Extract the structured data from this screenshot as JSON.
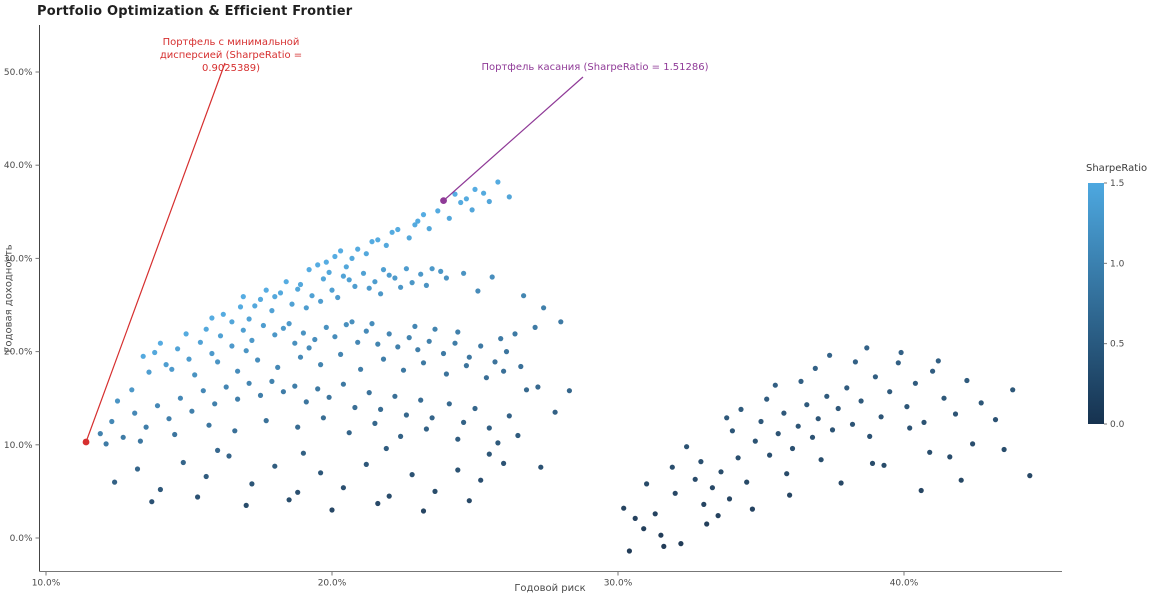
{
  "title": "Portfolio Optimization & Efficient Frontier",
  "chart_data": {
    "type": "scatter",
    "title": "Portfolio Optimization & Efficient Frontier",
    "xlabel": "Годовой риск",
    "ylabel": "Годовая доходность",
    "x_tick_labels": [
      "10.0%",
      "20.0%",
      "30.0%",
      "40.0%"
    ],
    "x_tick_values": [
      10,
      20,
      30,
      40
    ],
    "y_tick_labels": [
      "0.0%",
      "10.0%",
      "20.0%",
      "30.0%",
      "40.0%",
      "50.0%"
    ],
    "y_tick_values": [
      0,
      10,
      20,
      30,
      40,
      50
    ],
    "xlim": [
      9.8,
      45.7
    ],
    "ylim": [
      -3.6,
      55.0
    ],
    "grid": false,
    "units": "percent",
    "color_rule": "point color = SharpeRatio = return / risk, mapped on colorbar scale",
    "colorbar": {
      "title": "SharpeRatio",
      "tick_labels": [
        "1.5",
        "1.0",
        "0.5",
        "0.0"
      ],
      "tick_values": [
        1.5,
        1.0,
        0.5,
        0.0
      ],
      "min": 0.0,
      "max": 1.5,
      "color_min": "#16324F",
      "color_max": "#4DA8E0"
    },
    "marked_points": {
      "min_variance": {
        "risk": 11.4,
        "return": 10.3,
        "sharpe_label": "0.9025389",
        "color": "#d62f2f",
        "annotation": "Портфель с минимальной дисперсией (SharpeRatio = 0.9025389)"
      },
      "tangency": {
        "risk": 23.9,
        "return": 36.2,
        "sharpe_label": "1.51286",
        "color": "#8f3a97",
        "annotation": "Портфель касания (SharpeRatio = 1.51286)"
      }
    },
    "points": [
      [
        19.2,
        28.8
      ],
      [
        19.8,
        29.6
      ],
      [
        20.1,
        30.2
      ],
      [
        20.5,
        29.1
      ],
      [
        20.9,
        31.0
      ],
      [
        21.2,
        30.5
      ],
      [
        21.6,
        32.0
      ],
      [
        21.9,
        31.4
      ],
      [
        22.3,
        33.1
      ],
      [
        22.7,
        32.2
      ],
      [
        23.0,
        34.0
      ],
      [
        23.4,
        33.2
      ],
      [
        23.7,
        35.1
      ],
      [
        24.1,
        34.3
      ],
      [
        24.5,
        36.0
      ],
      [
        24.9,
        35.2
      ],
      [
        25.3,
        37.0
      ],
      [
        25.8,
        38.2
      ],
      [
        26.2,
        36.6
      ],
      [
        24.3,
        36.9
      ],
      [
        22.1,
        32.8
      ],
      [
        20.3,
        30.8
      ],
      [
        19.5,
        29.3
      ],
      [
        23.2,
        34.7
      ],
      [
        25.0,
        37.4
      ],
      [
        21.4,
        31.8
      ],
      [
        22.9,
        33.6
      ],
      [
        24.7,
        36.4
      ],
      [
        20.7,
        30.0
      ],
      [
        25.5,
        36.1
      ],
      [
        16.2,
        24.0
      ],
      [
        16.8,
        24.8
      ],
      [
        17.1,
        23.5
      ],
      [
        17.5,
        25.6
      ],
      [
        17.9,
        24.4
      ],
      [
        18.2,
        26.3
      ],
      [
        18.6,
        25.1
      ],
      [
        18.9,
        27.2
      ],
      [
        19.3,
        26.0
      ],
      [
        19.7,
        27.8
      ],
      [
        20.0,
        26.6
      ],
      [
        20.4,
        28.1
      ],
      [
        20.8,
        27.0
      ],
      [
        21.1,
        28.4
      ],
      [
        21.5,
        27.5
      ],
      [
        21.8,
        28.8
      ],
      [
        22.2,
        27.9
      ],
      [
        22.6,
        28.9
      ],
      [
        23.1,
        28.3
      ],
      [
        23.5,
        28.9
      ],
      [
        16.5,
        23.2
      ],
      [
        17.3,
        24.9
      ],
      [
        18.0,
        25.9
      ],
      [
        18.8,
        26.7
      ],
      [
        19.6,
        25.4
      ],
      [
        20.6,
        27.7
      ],
      [
        21.3,
        26.8
      ],
      [
        22.0,
        28.2
      ],
      [
        22.8,
        27.4
      ],
      [
        23.8,
        28.6
      ],
      [
        15.8,
        23.6
      ],
      [
        16.9,
        25.9
      ],
      [
        17.7,
        26.6
      ],
      [
        18.4,
        27.5
      ],
      [
        19.1,
        24.7
      ],
      [
        19.9,
        28.5
      ],
      [
        20.2,
        25.8
      ],
      [
        21.7,
        26.2
      ],
      [
        22.4,
        26.9
      ],
      [
        23.3,
        27.1
      ],
      [
        24.0,
        27.9
      ],
      [
        24.6,
        28.4
      ],
      [
        25.1,
        26.5
      ],
      [
        25.6,
        28.0
      ],
      [
        26.7,
        26.0
      ],
      [
        27.4,
        24.7
      ],
      [
        28.0,
        23.2
      ],
      [
        13.4,
        19.5
      ],
      [
        13.8,
        19.9
      ],
      [
        14.2,
        18.6
      ],
      [
        14.6,
        20.3
      ],
      [
        15.0,
        19.2
      ],
      [
        15.4,
        21.0
      ],
      [
        15.8,
        19.8
      ],
      [
        16.1,
        21.7
      ],
      [
        16.5,
        20.6
      ],
      [
        16.9,
        22.3
      ],
      [
        17.2,
        21.2
      ],
      [
        17.6,
        22.8
      ],
      [
        18.0,
        21.8
      ],
      [
        18.3,
        22.5
      ],
      [
        18.7,
        20.9
      ],
      [
        19.0,
        22.0
      ],
      [
        19.4,
        21.3
      ],
      [
        19.8,
        22.6
      ],
      [
        20.1,
        21.6
      ],
      [
        20.5,
        22.9
      ],
      [
        20.9,
        21.0
      ],
      [
        21.2,
        22.2
      ],
      [
        21.6,
        20.8
      ],
      [
        22.0,
        21.9
      ],
      [
        22.3,
        20.5
      ],
      [
        22.7,
        21.5
      ],
      [
        23.0,
        20.2
      ],
      [
        23.4,
        21.1
      ],
      [
        23.9,
        19.8
      ],
      [
        24.3,
        20.9
      ],
      [
        24.8,
        19.4
      ],
      [
        25.2,
        20.6
      ],
      [
        25.7,
        18.9
      ],
      [
        26.1,
        20.0
      ],
      [
        26.6,
        18.4
      ],
      [
        13.6,
        17.8
      ],
      [
        14.4,
        18.1
      ],
      [
        15.2,
        17.5
      ],
      [
        16.0,
        18.9
      ],
      [
        16.7,
        17.9
      ],
      [
        17.4,
        19.1
      ],
      [
        18.1,
        18.3
      ],
      [
        18.9,
        19.4
      ],
      [
        19.6,
        18.6
      ],
      [
        20.3,
        19.7
      ],
      [
        21.0,
        18.1
      ],
      [
        21.8,
        19.2
      ],
      [
        22.5,
        18.0
      ],
      [
        23.2,
        18.8
      ],
      [
        24.0,
        17.6
      ],
      [
        24.7,
        18.5
      ],
      [
        25.4,
        17.2
      ],
      [
        26.0,
        17.9
      ],
      [
        14.0,
        20.9
      ],
      [
        15.6,
        22.4
      ],
      [
        17.0,
        20.1
      ],
      [
        18.5,
        23.0
      ],
      [
        19.2,
        20.4
      ],
      [
        20.7,
        23.2
      ],
      [
        21.4,
        23.0
      ],
      [
        22.9,
        22.7
      ],
      [
        23.6,
        22.4
      ],
      [
        24.4,
        22.1
      ],
      [
        25.9,
        21.4
      ],
      [
        26.4,
        21.9
      ],
      [
        27.1,
        22.6
      ],
      [
        14.9,
        21.9
      ],
      [
        11.9,
        11.2
      ],
      [
        12.3,
        12.5
      ],
      [
        12.7,
        10.8
      ],
      [
        13.1,
        13.4
      ],
      [
        13.5,
        11.9
      ],
      [
        13.9,
        14.2
      ],
      [
        14.3,
        12.8
      ],
      [
        14.7,
        15.0
      ],
      [
        15.1,
        13.6
      ],
      [
        15.5,
        15.8
      ],
      [
        15.9,
        14.4
      ],
      [
        16.3,
        16.2
      ],
      [
        16.7,
        14.9
      ],
      [
        17.1,
        16.6
      ],
      [
        17.5,
        15.3
      ],
      [
        17.9,
        16.8
      ],
      [
        18.3,
        15.7
      ],
      [
        18.7,
        16.3
      ],
      [
        19.1,
        14.6
      ],
      [
        19.5,
        16.0
      ],
      [
        19.9,
        15.1
      ],
      [
        20.4,
        16.5
      ],
      [
        20.8,
        14.0
      ],
      [
        21.3,
        15.6
      ],
      [
        21.7,
        13.8
      ],
      [
        22.2,
        15.2
      ],
      [
        22.6,
        13.2
      ],
      [
        23.1,
        14.8
      ],
      [
        23.5,
        12.9
      ],
      [
        24.1,
        14.4
      ],
      [
        24.6,
        12.4
      ],
      [
        25.0,
        13.9
      ],
      [
        25.5,
        11.8
      ],
      [
        26.2,
        13.1
      ],
      [
        26.8,
        15.9
      ],
      [
        12.1,
        10.1
      ],
      [
        13.3,
        10.4
      ],
      [
        14.5,
        11.1
      ],
      [
        15.7,
        12.1
      ],
      [
        16.6,
        11.5
      ],
      [
        17.7,
        12.6
      ],
      [
        18.8,
        11.9
      ],
      [
        19.7,
        12.9
      ],
      [
        20.6,
        11.3
      ],
      [
        21.5,
        12.3
      ],
      [
        22.4,
        10.9
      ],
      [
        23.3,
        11.7
      ],
      [
        24.4,
        10.6
      ],
      [
        25.8,
        10.2
      ],
      [
        26.5,
        11.0
      ],
      [
        27.2,
        16.2
      ],
      [
        27.8,
        13.5
      ],
      [
        28.3,
        15.8
      ],
      [
        12.5,
        14.7
      ],
      [
        13.0,
        15.9
      ],
      [
        12.4,
        6.0
      ],
      [
        13.2,
        7.4
      ],
      [
        14.0,
        5.2
      ],
      [
        14.8,
        8.1
      ],
      [
        15.6,
        6.6
      ],
      [
        16.4,
        8.8
      ],
      [
        17.2,
        5.8
      ],
      [
        18.0,
        7.7
      ],
      [
        18.8,
        4.9
      ],
      [
        19.6,
        7.0
      ],
      [
        20.4,
        5.4
      ],
      [
        21.2,
        7.9
      ],
      [
        22.0,
        4.5
      ],
      [
        22.8,
        6.8
      ],
      [
        23.6,
        5.0
      ],
      [
        24.4,
        7.3
      ],
      [
        25.2,
        6.2
      ],
      [
        26.0,
        8.0
      ],
      [
        13.7,
        3.9
      ],
      [
        15.3,
        4.4
      ],
      [
        17.0,
        3.5
      ],
      [
        18.5,
        4.1
      ],
      [
        20.0,
        3.0
      ],
      [
        21.6,
        3.7
      ],
      [
        23.2,
        2.9
      ],
      [
        24.8,
        4.0
      ],
      [
        16.0,
        9.4
      ],
      [
        19.0,
        9.1
      ],
      [
        21.9,
        9.6
      ],
      [
        25.5,
        9.0
      ],
      [
        27.3,
        7.6
      ],
      [
        30.2,
        3.2
      ],
      [
        30.6,
        2.1
      ],
      [
        30.9,
        1.0
      ],
      [
        31.3,
        2.6
      ],
      [
        31.6,
        -0.9
      ],
      [
        32.0,
        4.8
      ],
      [
        32.4,
        9.8
      ],
      [
        32.7,
        6.3
      ],
      [
        33.0,
        3.6
      ],
      [
        33.3,
        5.4
      ],
      [
        33.6,
        7.1
      ],
      [
        33.9,
        4.2
      ],
      [
        34.2,
        8.6
      ],
      [
        34.5,
        6.0
      ],
      [
        34.8,
        10.4
      ],
      [
        35.0,
        12.5
      ],
      [
        35.3,
        8.9
      ],
      [
        35.6,
        11.2
      ],
      [
        35.8,
        13.4
      ],
      [
        36.1,
        9.6
      ],
      [
        36.3,
        12.0
      ],
      [
        36.6,
        14.3
      ],
      [
        36.8,
        10.8
      ],
      [
        37.0,
        12.8
      ],
      [
        37.3,
        15.2
      ],
      [
        37.5,
        11.6
      ],
      [
        37.7,
        13.9
      ],
      [
        38.0,
        16.1
      ],
      [
        38.2,
        12.2
      ],
      [
        38.5,
        14.7
      ],
      [
        38.7,
        20.4
      ],
      [
        39.0,
        17.3
      ],
      [
        39.2,
        13.0
      ],
      [
        39.5,
        15.7
      ],
      [
        39.8,
        18.8
      ],
      [
        40.1,
        14.1
      ],
      [
        40.4,
        16.6
      ],
      [
        40.7,
        12.4
      ],
      [
        41.0,
        17.9
      ],
      [
        41.4,
        15.0
      ],
      [
        41.8,
        13.3
      ],
      [
        42.2,
        16.9
      ],
      [
        42.7,
        14.5
      ],
      [
        43.2,
        12.7
      ],
      [
        43.8,
        15.9
      ],
      [
        44.4,
        6.7
      ],
      [
        31.0,
        5.8
      ],
      [
        31.9,
        7.6
      ],
      [
        32.9,
        8.2
      ],
      [
        34.0,
        11.5
      ],
      [
        35.5,
        16.4
      ],
      [
        36.9,
        18.2
      ],
      [
        38.3,
        18.9
      ],
      [
        33.5,
        2.4
      ],
      [
        34.7,
        3.1
      ],
      [
        36.0,
        4.6
      ],
      [
        37.8,
        5.9
      ],
      [
        39.3,
        7.8
      ],
      [
        40.9,
        9.2
      ],
      [
        42.4,
        10.1
      ],
      [
        30.4,
        -1.4
      ],
      [
        31.5,
        0.3
      ],
      [
        32.2,
        -0.6
      ],
      [
        33.1,
        1.5
      ],
      [
        35.9,
        6.9
      ],
      [
        37.1,
        8.4
      ],
      [
        38.8,
        10.9
      ],
      [
        40.2,
        11.8
      ],
      [
        41.6,
        8.7
      ],
      [
        36.4,
        16.8
      ],
      [
        37.4,
        19.6
      ],
      [
        35.2,
        14.9
      ],
      [
        34.3,
        13.8
      ],
      [
        33.8,
        12.9
      ],
      [
        39.9,
        19.9
      ],
      [
        41.2,
        19.0
      ],
      [
        38.9,
        8.0
      ],
      [
        40.6,
        5.1
      ],
      [
        42.0,
        6.2
      ],
      [
        43.5,
        9.5
      ]
    ]
  }
}
